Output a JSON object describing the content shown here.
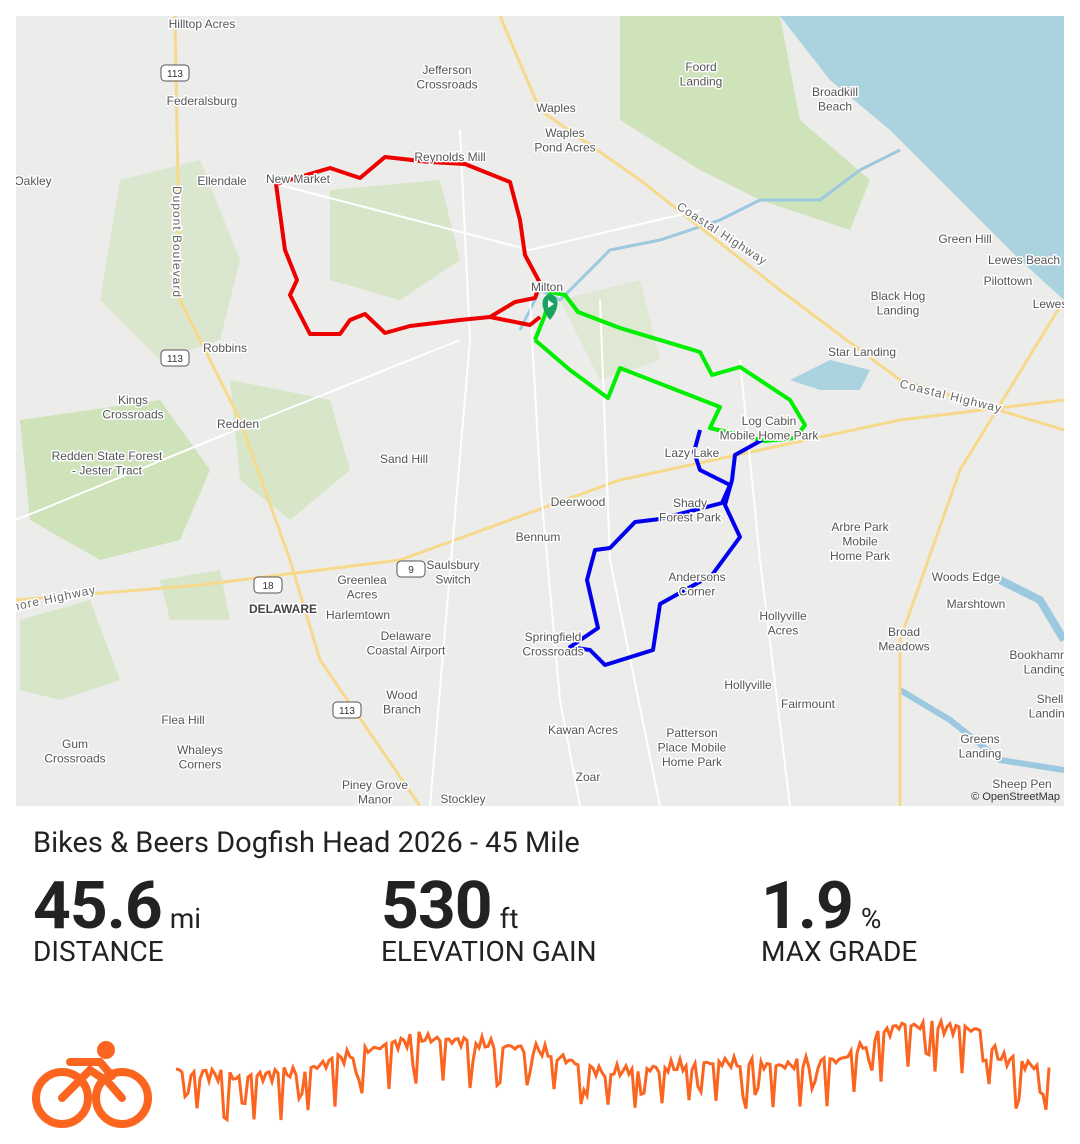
{
  "map": {
    "attribution": "© OpenStreetMap",
    "places": [
      [
        "Hilltop Acres"
      ],
      [
        "Federalsburg"
      ],
      [
        "Jefferson",
        "Crossroads"
      ],
      [
        "Waples"
      ],
      [
        "Waples",
        "Pond Acres"
      ],
      [
        "Foord",
        "Landing"
      ],
      [
        "Broadkill",
        "Beach"
      ],
      [
        "Oakley"
      ],
      [
        "Ellendale"
      ],
      [
        "New Market"
      ],
      [
        "Reynolds Mill"
      ],
      [
        "Milton"
      ],
      [
        "Green Hill"
      ],
      [
        "Lewes Beach"
      ],
      [
        "Pilottown"
      ],
      [
        "Lewes"
      ],
      [
        "Black Hog",
        "Landing"
      ],
      [
        "Star Landing"
      ],
      [
        "Robbins"
      ],
      [
        "Kings",
        "Crossroads"
      ],
      [
        "Redden"
      ],
      [
        "Redden State Forest",
        "- Jester Tract"
      ],
      [
        "Sand Hill"
      ],
      [
        "Log Cabin",
        "Mobile Home Park"
      ],
      [
        "Lazy Lake"
      ],
      [
        "Deerwood"
      ],
      [
        "Shady",
        "Forest Park"
      ],
      [
        "Bennum"
      ],
      [
        "Arbre Park",
        "Mobile",
        "Home Park"
      ],
      [
        "Saulsbury",
        "Switch"
      ],
      [
        "Greenlea",
        "Acres"
      ],
      [
        "DELAWARE"
      ],
      [
        "Harlemtown"
      ],
      [
        "Woods Edge"
      ],
      [
        "Marshtown"
      ],
      [
        "Andersons",
        "Corner"
      ],
      [
        "Hollyville",
        "Acres"
      ],
      [
        "Delaware",
        "Coastal Airport"
      ],
      [
        "Springfield",
        "Crossroads"
      ],
      [
        "Broad",
        "Meadows"
      ],
      [
        "Bookhammer",
        "Landing"
      ],
      [
        "Hollyville"
      ],
      [
        "Fairmount"
      ],
      [
        "Wood",
        "Branch"
      ],
      [
        "Shell",
        "Landing"
      ],
      [
        "Flea Hill"
      ],
      [
        "Kawan Acres"
      ],
      [
        "Gum",
        "Crossroads"
      ],
      [
        "Whaleys",
        "Corners"
      ],
      [
        "Patterson",
        "Place Mobile",
        "Home Park"
      ],
      [
        "Greens",
        "Landing"
      ],
      [
        "Zoar"
      ],
      [
        "Piney Grove",
        "Manor"
      ],
      [
        "Stockley"
      ],
      [
        "Sheep Pen"
      ]
    ],
    "road_shields": [
      "113",
      "113",
      "113",
      "18",
      "9"
    ],
    "road_names": [
      "Dupont Boulevard",
      "Coastal Highway",
      "Coastal Highway",
      "nore Highway"
    ]
  },
  "route": {
    "title": "Bikes & Beers Dogfish Head 2026 - 45 Mile"
  },
  "stats": [
    {
      "value": 45.6,
      "unit": "mi",
      "label": "DISTANCE"
    },
    {
      "value": 530,
      "unit": "ft",
      "label": "ELEVATION GAIN"
    },
    {
      "value": 1.9,
      "unit": "%",
      "label": "MAX GRADE"
    }
  ]
}
